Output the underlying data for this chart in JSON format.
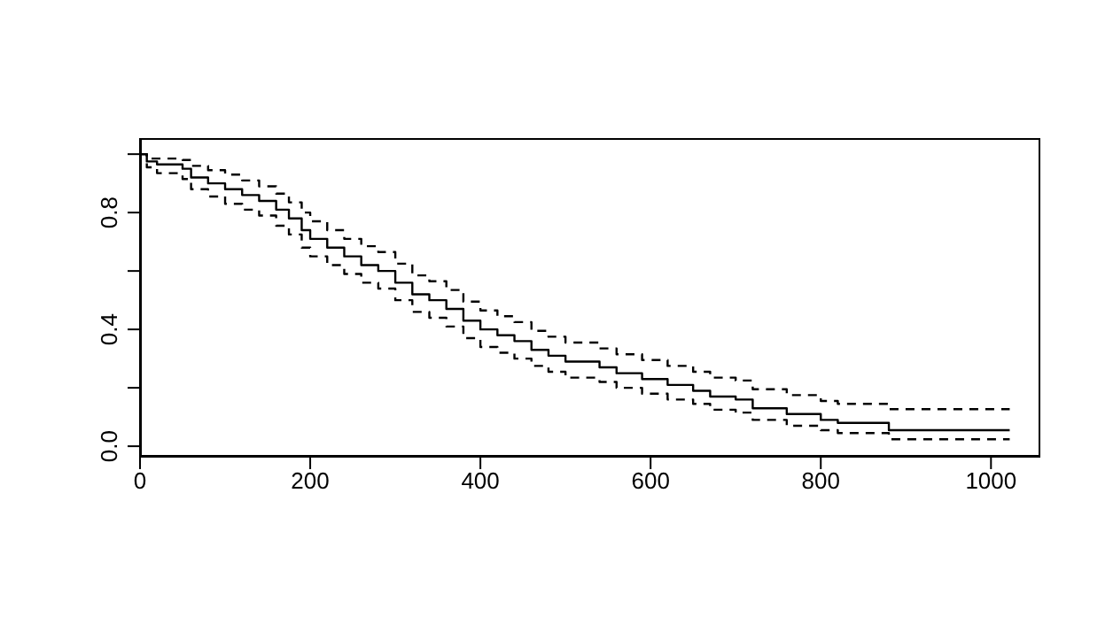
{
  "chart_data": {
    "type": "step",
    "x": [
      0,
      8,
      20,
      50,
      60,
      80,
      100,
      120,
      140,
      160,
      175,
      190,
      200,
      220,
      240,
      260,
      280,
      300,
      320,
      340,
      360,
      380,
      400,
      420,
      440,
      460,
      480,
      500,
      540,
      560,
      590,
      620,
      650,
      670,
      700,
      720,
      760,
      800,
      820,
      880,
      1022
    ],
    "series": [
      {
        "color": "#000000",
        "line_style": "solid",
        "values": [
          1,
          0.975,
          0.965,
          0.95,
          0.92,
          0.9,
          0.88,
          0.86,
          0.84,
          0.81,
          0.78,
          0.74,
          0.71,
          0.68,
          0.65,
          0.62,
          0.6,
          0.56,
          0.52,
          0.5,
          0.47,
          0.43,
          0.4,
          0.38,
          0.36,
          0.33,
          0.31,
          0.29,
          0.27,
          0.25,
          0.23,
          0.21,
          0.19,
          0.17,
          0.16,
          0.13,
          0.11,
          0.09,
          0.08,
          0.055,
          0.055
        ]
      },
      {
        "color": "#000000",
        "line_style": "dashed",
        "values": [
          1,
          0.985,
          0.985,
          0.98,
          0.96,
          0.945,
          0.93,
          0.91,
          0.89,
          0.865,
          0.835,
          0.8,
          0.77,
          0.74,
          0.71,
          0.685,
          0.665,
          0.625,
          0.585,
          0.565,
          0.535,
          0.495,
          0.465,
          0.445,
          0.425,
          0.395,
          0.375,
          0.355,
          0.335,
          0.315,
          0.295,
          0.275,
          0.255,
          0.235,
          0.225,
          0.195,
          0.175,
          0.155,
          0.145,
          0.127,
          0.127
        ]
      },
      {
        "color": "#000000",
        "line_style": "dashed",
        "values": [
          1,
          0.955,
          0.935,
          0.915,
          0.88,
          0.855,
          0.83,
          0.81,
          0.79,
          0.755,
          0.725,
          0.68,
          0.65,
          0.62,
          0.59,
          0.56,
          0.54,
          0.5,
          0.46,
          0.44,
          0.41,
          0.37,
          0.34,
          0.32,
          0.3,
          0.275,
          0.255,
          0.235,
          0.22,
          0.2,
          0.18,
          0.16,
          0.145,
          0.125,
          0.115,
          0.09,
          0.07,
          0.055,
          0.045,
          0.024,
          0.024
        ]
      }
    ],
    "xlim": [
      0,
      1058
    ],
    "xticks": [
      0,
      200,
      400,
      600,
      800,
      1000
    ],
    "ylim": [
      -0.036,
      1.055
    ],
    "yticks": [
      {
        "value": 0,
        "label": "0.0"
      },
      {
        "value": 0.2,
        "label": null
      },
      {
        "value": 0.4,
        "label": "0.4"
      },
      {
        "value": 0.6,
        "label": null
      },
      {
        "value": 0.8,
        "label": "0.8"
      },
      {
        "value": 1,
        "label": null
      }
    ],
    "grid": false,
    "legend": false,
    "marker": "none"
  }
}
